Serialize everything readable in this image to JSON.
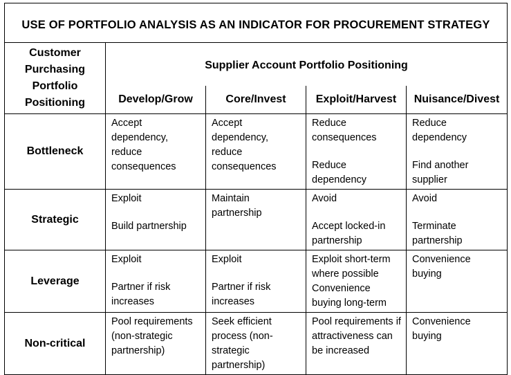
{
  "title": "USE OF PORTFOLIO ANALYSIS  AS AN INDICATOR FOR PROCUREMENT STRATEGY",
  "corner_label": [
    "Customer",
    "Purchasing",
    "Portfolio",
    "Positioning"
  ],
  "supplier_header": "Supplier Account Portfolio Positioning",
  "columns": [
    "Develop/Grow",
    "Core/Invest",
    "Exploit/Harvest",
    "Nuisance/Divest"
  ],
  "rows": [
    {
      "label": "Bottleneck",
      "cells": [
        [
          "Accept dependency, reduce consequences"
        ],
        [
          "Accept dependency, reduce consequences"
        ],
        [
          "Reduce consequences",
          "Reduce dependency"
        ],
        [
          "Reduce dependency",
          "Find another supplier"
        ]
      ]
    },
    {
      "label": "Strategic",
      "cells": [
        [
          "Exploit",
          "Build partnership"
        ],
        [
          "Maintain partnership"
        ],
        [
          "Avoid",
          "Accept locked-in partnership"
        ],
        [
          "Avoid",
          "Terminate partnership"
        ]
      ]
    },
    {
      "label": "Leverage",
      "cells": [
        [
          "Exploit",
          "Partner if risk increases"
        ],
        [
          "Exploit",
          "Partner if risk increases"
        ],
        [
          "Exploit short-term where possible",
          "Convenience buying long-term"
        ],
        [
          "Convenience buying"
        ]
      ]
    },
    {
      "label": "Non-critical",
      "cells": [
        [
          "Pool requirements (non-strategic partnership)"
        ],
        [
          "Seek efficient process (non-strategic partnership)"
        ],
        [
          "Pool requirements if attractiveness can be increased"
        ],
        [
          "Convenience buying"
        ]
      ]
    }
  ]
}
